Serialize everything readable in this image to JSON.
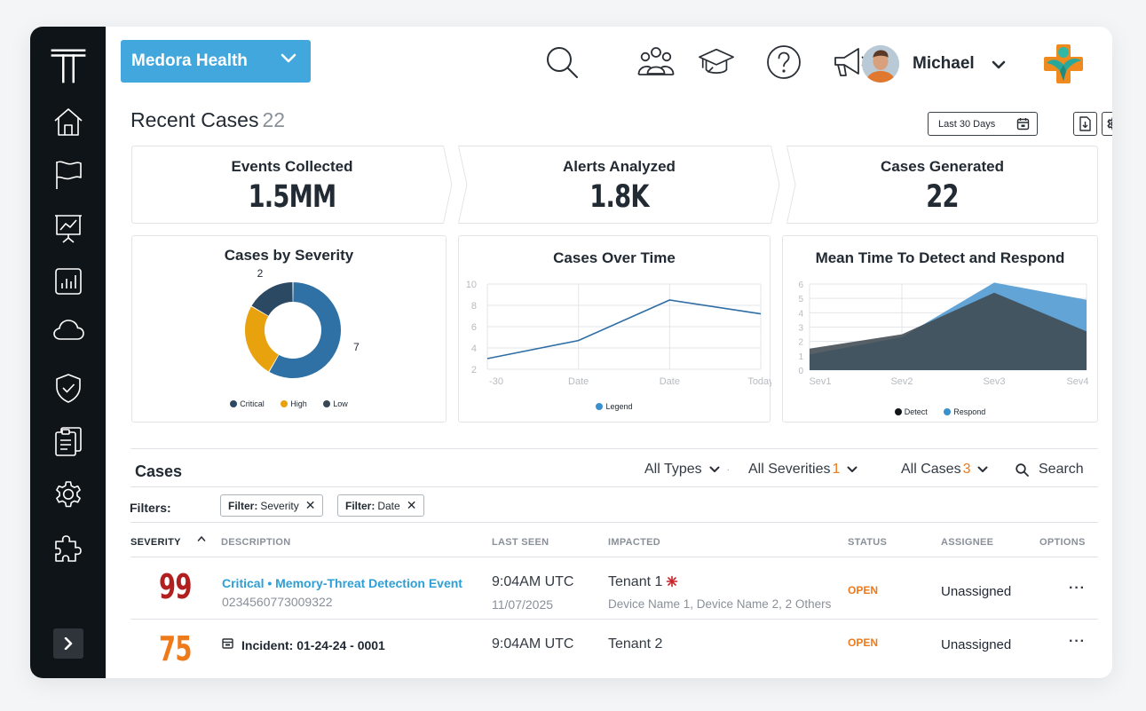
{
  "header": {
    "tenant_label": "Medora Health",
    "user_name": "Michael"
  },
  "page": {
    "title": "Recent Cases",
    "count": "22",
    "date_range": "Last 30 Days"
  },
  "stats": [
    {
      "label": "Events Collected",
      "value": "1.5MM"
    },
    {
      "label": "Alerts Analyzed",
      "value": "1.8K"
    },
    {
      "label": "Cases Generated",
      "value": "22"
    }
  ],
  "colors": {
    "critical": "#2c4963",
    "high": "#e8a20e",
    "low": "#2f70a5",
    "detect": "#404a52",
    "respond": "#5a9fd4",
    "accent": "#41a7dc",
    "orange": "#ef7a1a",
    "red": "#b21f1f"
  },
  "cards": {
    "severity_title": "Cases by Severity",
    "over_time_title": "Cases Over Time",
    "mttd_title": "Mean Time To Detect and Respond"
  },
  "chart_data": [
    {
      "type": "pie",
      "title": "Cases by Severity",
      "labels": [
        "Critical",
        "High",
        "Low"
      ],
      "values": [
        2,
        3,
        7
      ],
      "data_labels": [
        "2",
        "",
        "7"
      ]
    },
    {
      "type": "line",
      "title": "Cases Over Time",
      "x": [
        "-30",
        "Date",
        "Date",
        "Today"
      ],
      "series": [
        {
          "name": "Legend",
          "values": [
            3,
            4.7,
            8.5,
            7.2
          ]
        }
      ],
      "yticks": [
        "2",
        "4",
        "6",
        "8",
        "10"
      ],
      "ylim": [
        2,
        10
      ],
      "grid": true
    },
    {
      "type": "area",
      "title": "Mean Time To Detect and Respond",
      "x": [
        "Sev1",
        "Sev2",
        "Sev3",
        "Sev4"
      ],
      "series": [
        {
          "name": "Detect",
          "values": [
            1.5,
            2.5,
            5.4,
            2.7
          ]
        },
        {
          "name": "Respond",
          "values": [
            1.1,
            2.3,
            6.1,
            4.9
          ]
        }
      ],
      "ylim": [
        0,
        6
      ],
      "grid": true
    }
  ],
  "cases": {
    "title": "Cases",
    "filters": [
      {
        "label": "All Types",
        "count": ""
      },
      {
        "label": "All Severities",
        "count": "1"
      },
      {
        "label": "All Cases",
        "count": "3"
      }
    ],
    "search_label": "Search",
    "filters_label": "Filters:",
    "chips": [
      {
        "key": "Filter:",
        "value": "Severity"
      },
      {
        "key": "Filter:",
        "value": "Date"
      }
    ],
    "columns": [
      "SEVERITY",
      "DESCRIPTION",
      "LAST SEEN",
      "IMPACTED",
      "STATUS",
      "ASSIGNEE",
      "OPTIONS"
    ],
    "rows": [
      {
        "severity": "99",
        "title": "Critical • Memory-Threat Detection Event",
        "id": "0234560773009322",
        "time": "9:04AM UTC",
        "date": "11/07/2025",
        "tenant": "Tenant 1",
        "devices": "Device Name 1, Device Name 2, 2 Others",
        "status": "OPEN",
        "assignee": "Unassigned",
        "options": "···"
      },
      {
        "severity": "75",
        "title": "Incident: 01-24-24 - 0001",
        "time": "9:04AM UTC",
        "tenant": "Tenant 2",
        "status": "OPEN",
        "assignee": "Unassigned",
        "options": "···"
      }
    ]
  }
}
